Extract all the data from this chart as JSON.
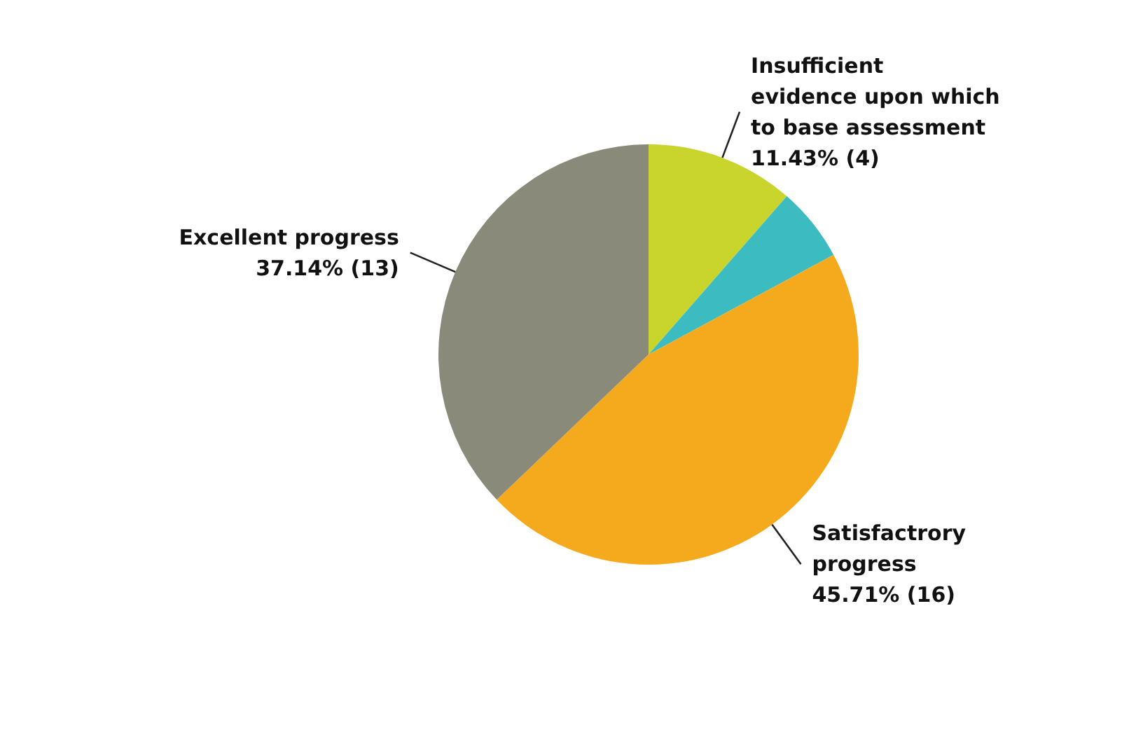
{
  "chart_data": {
    "type": "pie",
    "categories": [
      "Insufficient evidence upon which to base assessment",
      null,
      "Satisfactrory progress",
      "Excellent progress"
    ],
    "values": [
      11.43,
      5.71,
      45.71,
      37.14
    ],
    "value_labels": [
      "11.43% (4)",
      null,
      "45.71% (16)",
      "37.14% (13)"
    ],
    "colors": [
      "#c9d42c",
      "#3cbcc0",
      "#f5a91d",
      "#8a8a7a"
    ]
  }
}
